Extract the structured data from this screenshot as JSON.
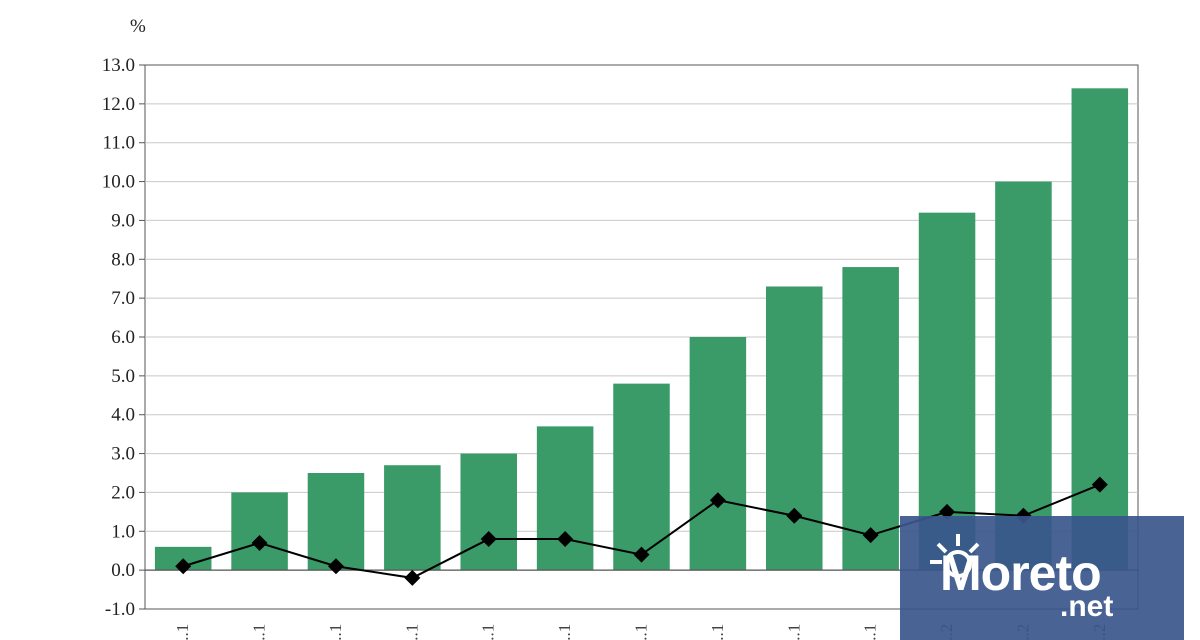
{
  "chart_data": {
    "type": "bar",
    "title": "",
    "xlabel": "",
    "ylabel": "%",
    "ylim": [
      -1.0,
      13.0
    ],
    "ytick_step": 1.0,
    "grid": true,
    "categories": [
      "...1",
      "...1",
      "...1",
      "...1",
      "...1",
      "...1",
      "...1",
      "...1",
      "...1",
      "...1",
      "...2",
      "...2",
      "...2"
    ],
    "series": [
      {
        "type": "bar",
        "color": "#3a9a68",
        "values": [
          0.6,
          2.0,
          2.5,
          2.7,
          3.0,
          3.7,
          4.8,
          6.0,
          7.3,
          7.8,
          9.2,
          10.0,
          12.4
        ]
      },
      {
        "type": "line",
        "color": "#000000",
        "marker": "diamond",
        "values": [
          0.1,
          0.7,
          0.1,
          -0.2,
          0.8,
          0.8,
          0.4,
          1.8,
          1.4,
          0.9,
          1.5,
          1.4,
          2.2
        ]
      }
    ]
  },
  "watermark": {
    "brand": "Moreto",
    "suffix": ".net",
    "icon": "sun-icon"
  }
}
